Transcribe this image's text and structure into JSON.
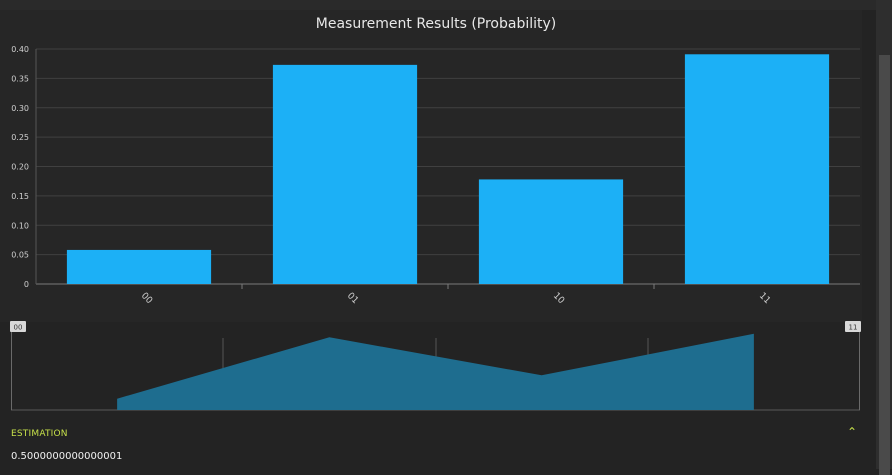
{
  "chart_data": {
    "type": "bar",
    "title": "Measurement Results (Probability)",
    "categories": [
      "00",
      "01",
      "10",
      "11"
    ],
    "values": [
      0.058,
      0.373,
      0.178,
      0.391
    ],
    "ylim": [
      0,
      0.4
    ],
    "yticks": [
      "0",
      "0.05",
      "0.10",
      "0.15",
      "0.20",
      "0.25",
      "0.30",
      "0.35",
      "0.40"
    ],
    "grid": true,
    "bar_color": "#1cb0f6"
  },
  "navigator": {
    "start_label": "00",
    "end_label": "11",
    "fill_color": "#1e6d8f"
  },
  "estimation": {
    "label": "ESTIMATION",
    "value": "0.5000000000000001",
    "accent_color": "#c6e04a"
  }
}
